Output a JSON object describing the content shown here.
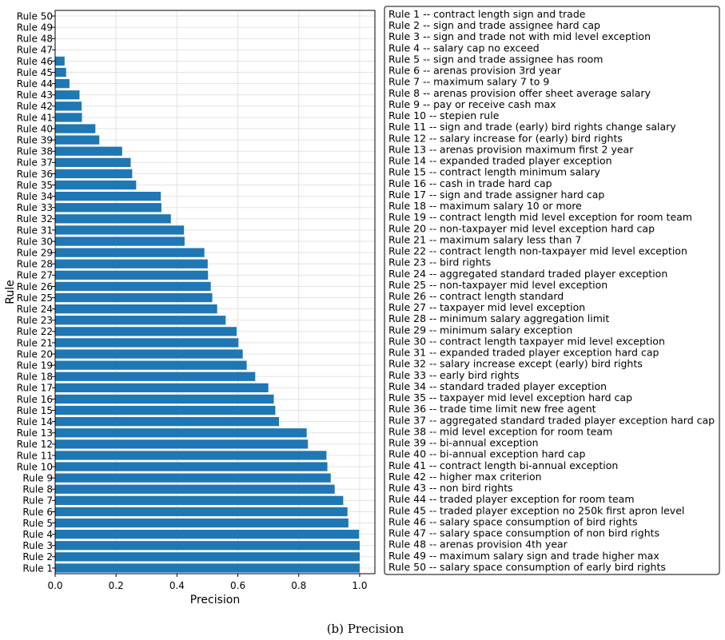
{
  "chart_data": {
    "type": "bar",
    "orientation": "horizontal",
    "caption": "(b) Precision",
    "title": "",
    "xlabel": "Precision",
    "ylabel": "Rule",
    "xlim": [
      0.0,
      1.05
    ],
    "xticks": [
      0.0,
      0.2,
      0.4,
      0.6,
      0.8,
      1.0
    ],
    "xtick_labels": [
      "0.0",
      "0.2",
      "0.4",
      "0.6",
      "0.8",
      "1.0"
    ],
    "grid": true,
    "legend_placement": "right",
    "bar_color": "#1f77b4",
    "categories": [
      "Rule 1",
      "Rule 2",
      "Rule 3",
      "Rule 4",
      "Rule 5",
      "Rule 6",
      "Rule 7",
      "Rule 8",
      "Rule 9",
      "Rule 10",
      "Rule 11",
      "Rule 12",
      "Rule 13",
      "Rule 14",
      "Rule 15",
      "Rule 16",
      "Rule 17",
      "Rule 18",
      "Rule 19",
      "Rule 20",
      "Rule 21",
      "Rule 22",
      "Rule 23",
      "Rule 24",
      "Rule 25",
      "Rule 26",
      "Rule 27",
      "Rule 28",
      "Rule 29",
      "Rule 30",
      "Rule 31",
      "Rule 32",
      "Rule 33",
      "Rule 34",
      "Rule 35",
      "Rule 36",
      "Rule 37",
      "Rule 38",
      "Rule 39",
      "Rule 40",
      "Rule 41",
      "Rule 42",
      "Rule 43",
      "Rule 44",
      "Rule 45",
      "Rule 46",
      "Rule 47",
      "Rule 48",
      "Rule 49",
      "Rule 50"
    ],
    "values": [
      1.0,
      1.0,
      1.0,
      0.998,
      0.963,
      0.96,
      0.946,
      0.918,
      0.905,
      0.894,
      0.891,
      0.83,
      0.826,
      0.735,
      0.723,
      0.718,
      0.7,
      0.657,
      0.629,
      0.616,
      0.602,
      0.596,
      0.56,
      0.532,
      0.516,
      0.511,
      0.502,
      0.501,
      0.49,
      0.425,
      0.423,
      0.38,
      0.349,
      0.347,
      0.266,
      0.253,
      0.248,
      0.22,
      0.145,
      0.132,
      0.088,
      0.087,
      0.08,
      0.047,
      0.036,
      0.031,
      0.0,
      0.0,
      0.0,
      0.0
    ],
    "legend_entries": [
      "Rule 1 -- contract length sign and trade",
      "Rule 2 -- sign and trade assignee hard cap",
      "Rule 3 -- sign and trade not with mid level exception",
      "Rule 4 -- salary cap no exceed",
      "Rule 5 -- sign and trade assignee has room",
      "Rule 6 -- arenas provision 3rd year",
      "Rule 7 -- maximum salary 7 to 9",
      "Rule 8 -- arenas provision offer sheet average salary",
      "Rule 9 -- pay or receive cash max",
      "Rule 10 -- stepien rule",
      "Rule 11 -- sign and trade (early) bird rights change salary",
      "Rule 12 -- salary increase for (early) bird rights",
      "Rule 13 -- arenas provision maximum first 2 year",
      "Rule 14 -- expanded traded player exception",
      "Rule 15 -- contract length minimum salary",
      "Rule 16 -- cash in trade hard cap",
      "Rule 17 -- sign and trade assigner hard cap",
      "Rule 18 -- maximum salary 10 or more",
      "Rule 19 -- contract length mid level exception for room team",
      "Rule 20 -- non-taxpayer mid level exception hard cap",
      "Rule 21 -- maximum salary less than 7",
      "Rule 22 -- contract length non-taxpayer mid level exception",
      "Rule 23 -- bird rights",
      "Rule 24 -- aggregated standard traded player exception",
      "Rule 25 -- non-taxpayer mid level exception",
      "Rule 26 -- contract length standard",
      "Rule 27 -- taxpayer mid level exception",
      "Rule 28 -- minimum salary aggregation limit",
      "Rule 29 -- minimum salary exception",
      "Rule 30 -- contract length taxpayer mid level exception",
      "Rule 31 -- expanded traded player exception hard cap",
      "Rule 32 -- salary increase except (early) bird rights",
      "Rule 33 -- early bird rights",
      "Rule 34 -- standard traded player exception",
      "Rule 35 -- taxpayer mid level exception hard cap",
      "Rule 36 -- trade time limit new free agent",
      "Rule 37 -- aggregated standard traded player exception hard cap",
      "Rule 38 -- mid level exception for room team",
      "Rule 39 -- bi-annual exception",
      "Rule 40 -- bi-annual exception hard cap",
      "Rule 41 -- contract length bi-annual exception",
      "Rule 42 -- higher max criterion",
      "Rule 43 -- non bird rights",
      "Rule 44 -- traded player exception for room team",
      "Rule 45 -- traded player exception no 250k first apron level",
      "Rule 46 -- salary space consumption of bird rights",
      "Rule 47 -- salary space consumption of non bird rights",
      "Rule 48 -- arenas provision 4th year",
      "Rule 49 -- maximum salary sign and trade higher max",
      "Rule 50 -- salary space consumption of early bird rights"
    ]
  }
}
